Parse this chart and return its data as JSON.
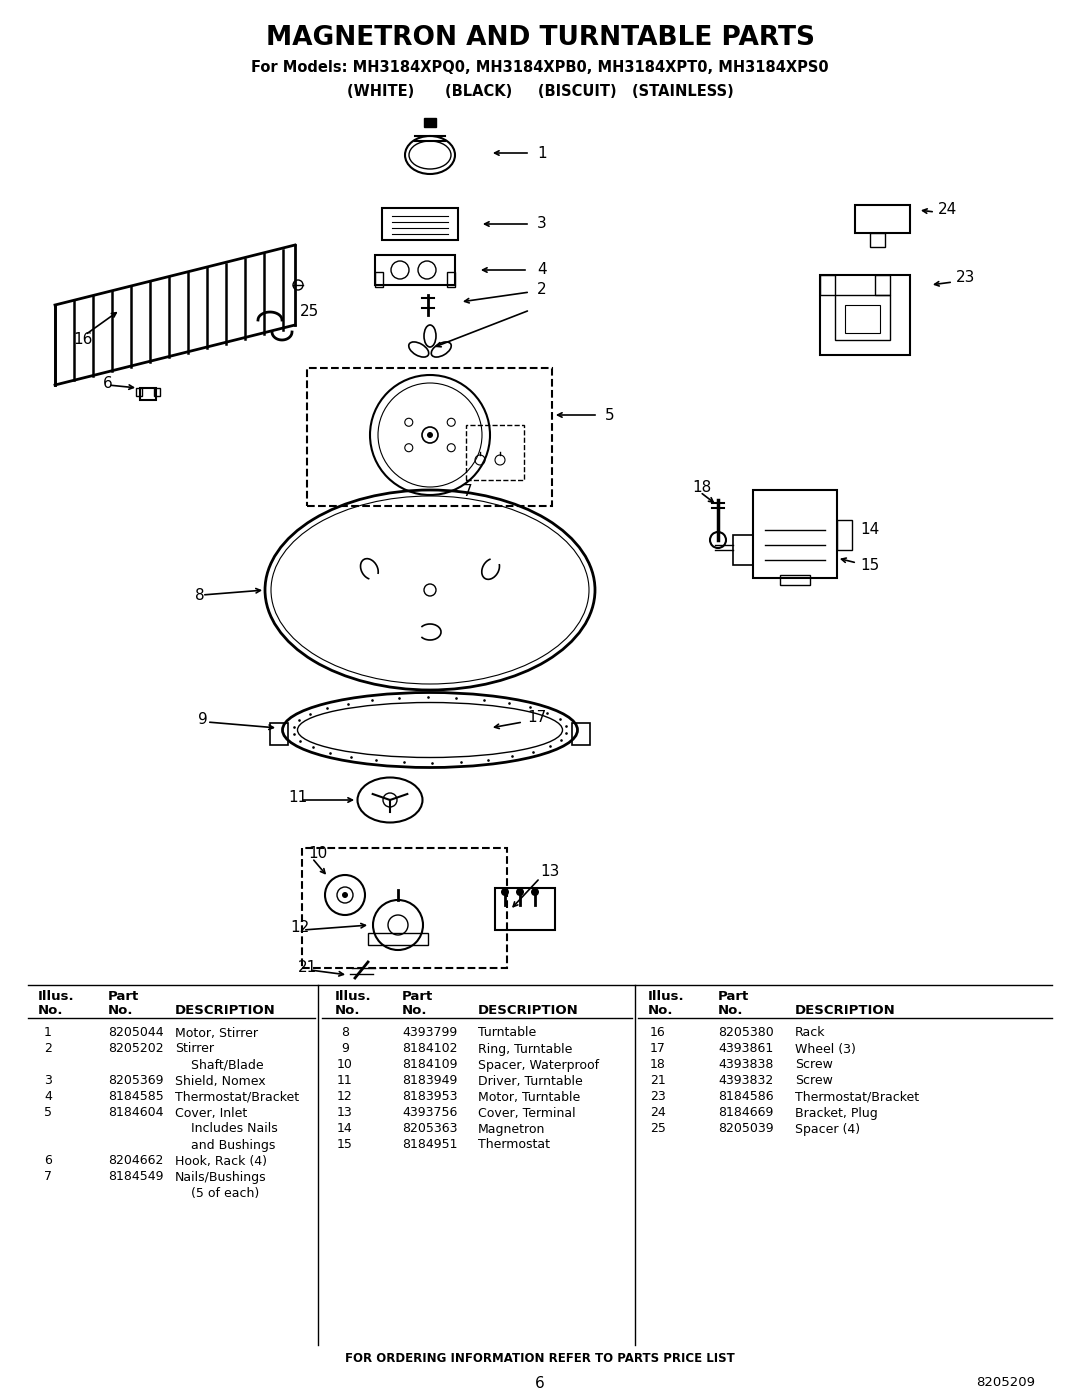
{
  "title": "MAGNETRON AND TURNTABLE PARTS",
  "subtitle1": "For Models: MH3184XPQ0, MH3184XPB0, MH3184XPT0, MH3184XPS0",
  "subtitle2": "(WHITE)      (BLACK)     (BISCUIT)   (STAINLESS)",
  "parts_col1": [
    [
      "1",
      "8205044",
      "Motor, Stirrer",
      0
    ],
    [
      "2",
      "8205202",
      "Stirrer",
      1
    ],
    [
      "",
      "",
      "    Shaft/Blade",
      0
    ],
    [
      "3",
      "8205369",
      "Shield, Nomex",
      0
    ],
    [
      "4",
      "8184585",
      "Thermostat/Bracket",
      0
    ],
    [
      "5",
      "8184604",
      "Cover, Inlet",
      1
    ],
    [
      "",
      "",
      "    Includes Nails",
      0
    ],
    [
      "",
      "",
      "    and Bushings",
      0
    ],
    [
      "6",
      "8204662",
      "Hook, Rack (4)",
      0
    ],
    [
      "7",
      "8184549",
      "Nails/Bushings",
      1
    ],
    [
      "",
      "",
      "    (5 of each)",
      0
    ]
  ],
  "parts_col2": [
    [
      "8",
      "4393799",
      "Turntable",
      0
    ],
    [
      "9",
      "8184102",
      "Ring, Turntable",
      0
    ],
    [
      "10",
      "8184109",
      "Spacer, Waterproof",
      0
    ],
    [
      "11",
      "8183949",
      "Driver, Turntable",
      0
    ],
    [
      "12",
      "8183953",
      "Motor, Turntable",
      0
    ],
    [
      "13",
      "4393756",
      "Cover, Terminal",
      0
    ],
    [
      "14",
      "8205363",
      "Magnetron",
      0
    ],
    [
      "15",
      "8184951",
      "Thermostat",
      0
    ]
  ],
  "parts_col3": [
    [
      "16",
      "8205380",
      "Rack",
      0
    ],
    [
      "17",
      "4393861",
      "Wheel (3)",
      0
    ],
    [
      "18",
      "4393838",
      "Screw",
      0
    ],
    [
      "21",
      "4393832",
      "Screw",
      0
    ],
    [
      "23",
      "8184586",
      "Thermostat/Bracket",
      0
    ],
    [
      "24",
      "8184669",
      "Bracket, Plug",
      0
    ],
    [
      "25",
      "8205039",
      "Spacer (4)",
      0
    ]
  ],
  "footer_text": "FOR ORDERING INFORMATION REFER TO PARTS PRICE LIST",
  "page_number": "6",
  "part_number": "8205209",
  "bg_color": "#ffffff",
  "text_color": "#000000"
}
